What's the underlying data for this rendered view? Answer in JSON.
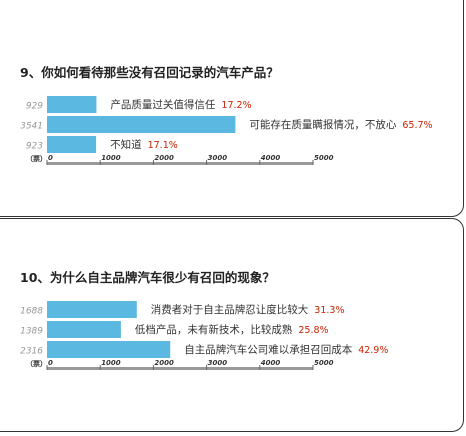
{
  "chart_data": [
    {
      "type": "bar",
      "orientation": "horizontal",
      "title": "9、你如何看待那些没有召回记录的汽车产品？",
      "unit_label": "（票）",
      "categories": [
        "产品质量过关值得信任",
        "可能存在质量瞒报情况，不放心",
        "不知道"
      ],
      "values": [
        929,
        3541,
        923
      ],
      "percentages": [
        "17.2%",
        "65.7%",
        "17.1%"
      ],
      "xlim": [
        0,
        5000
      ],
      "ticks": [
        "0",
        "1000",
        "2000",
        "3000",
        "4000",
        "5000"
      ],
      "bar_color": "#5bb8e0",
      "pct_color": "#cc2200"
    },
    {
      "type": "bar",
      "orientation": "horizontal",
      "title": "10、为什么自主品牌汽车很少有召回的现象？",
      "unit_label": "（票）",
      "categories": [
        "消费者对于自主品牌忍让度比较大",
        "低档产品，未有新技术，比较成熟",
        "自主品牌汽车公司难以承担召回成本"
      ],
      "values": [
        1688,
        1389,
        2316
      ],
      "percentages": [
        "31.3%",
        "25.8%",
        "42.9%"
      ],
      "xlim": [
        0,
        5000
      ],
      "ticks": [
        "0",
        "1000",
        "2000",
        "3000",
        "4000",
        "5000"
      ],
      "bar_color": "#5bb8e0",
      "pct_color": "#cc2200"
    }
  ]
}
